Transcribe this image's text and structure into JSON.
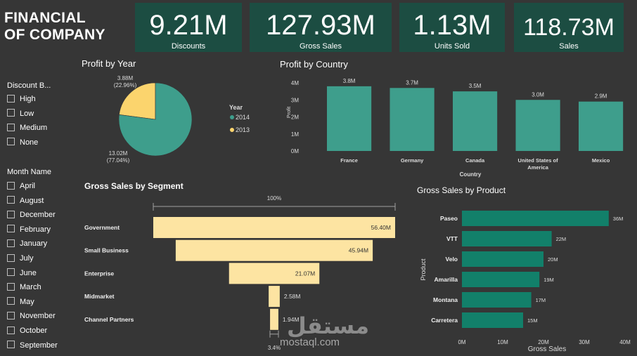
{
  "title": {
    "line1": "FINANCIAL",
    "line2": "OF COMPANY"
  },
  "kpis": [
    {
      "value": "9.21M",
      "label": "Discounts"
    },
    {
      "value": "127.93M",
      "label": "Gross Sales"
    },
    {
      "value": "1.13M",
      "label": "Units Sold"
    },
    {
      "value": "118.73M",
      "label": "Sales"
    }
  ],
  "slicers": {
    "discount_band": {
      "title": "Discount B...",
      "items": [
        "High",
        "Low",
        "Medium",
        "None"
      ]
    },
    "month": {
      "title": "Month Name",
      "items": [
        "April",
        "August",
        "December",
        "February",
        "January",
        "July",
        "June",
        "March",
        "May",
        "November",
        "October",
        "September"
      ]
    }
  },
  "colors": {
    "teal": "#3e9e8c",
    "gold": "#fbd46d",
    "funnel": "#fde4a2",
    "product": "#12806a",
    "kpi_bg": "#1c4d42"
  },
  "watermark": {
    "text": "mostaql.com",
    "arabic": "مستقل"
  },
  "chart_data": [
    {
      "type": "pie",
      "title": "Profit by Year",
      "legend_title": "Year",
      "legend_position": "right",
      "slices": [
        {
          "label": "2014",
          "value": 13.02,
          "display": "13.02M",
          "pct": "(77.04%)"
        },
        {
          "label": "2013",
          "value": 3.88,
          "display": "3.88M",
          "pct": "(22.96%)"
        }
      ]
    },
    {
      "type": "bar",
      "title": "Profit by Country",
      "xlabel": "Country",
      "ylabel": "Profit",
      "categories": [
        "France",
        "Germany",
        "Canada",
        "United States of America",
        "Mexico"
      ],
      "values": [
        3.8,
        3.7,
        3.5,
        3.0,
        2.9
      ],
      "labels": [
        "3.8M",
        "3.7M",
        "3.5M",
        "3.0M",
        "2.9M"
      ],
      "yticks": [
        "0M",
        "1M",
        "2M",
        "3M",
        "4M"
      ],
      "ylim": [
        0,
        4
      ]
    },
    {
      "type": "bar",
      "orientation": "funnel",
      "title": "Gross Sales by Segment",
      "categories": [
        "Government",
        "Small Business",
        "Enterprise",
        "Midmarket",
        "Channel Partners"
      ],
      "values": [
        56.4,
        45.94,
        21.07,
        2.58,
        1.94
      ],
      "labels": [
        "56.40M",
        "45.94M",
        "21.07M",
        "2.58M",
        "1.94M"
      ],
      "top_pct": "100%",
      "bottom_pct": "3.4%"
    },
    {
      "type": "bar",
      "orientation": "horizontal",
      "title": "Gross Sales by Product",
      "xlabel": "Gross Sales",
      "ylabel": "Product",
      "categories": [
        "Paseo",
        "VTT",
        "Velo",
        "Amarilla",
        "Montana",
        "Carretera"
      ],
      "values": [
        36,
        22,
        20,
        19,
        17,
        15
      ],
      "labels": [
        "36M",
        "22M",
        "20M",
        "19M",
        "17M",
        "15M"
      ],
      "xticks": [
        "0M",
        "10M",
        "20M",
        "30M",
        "40M"
      ],
      "xlim": [
        0,
        40
      ]
    }
  ]
}
